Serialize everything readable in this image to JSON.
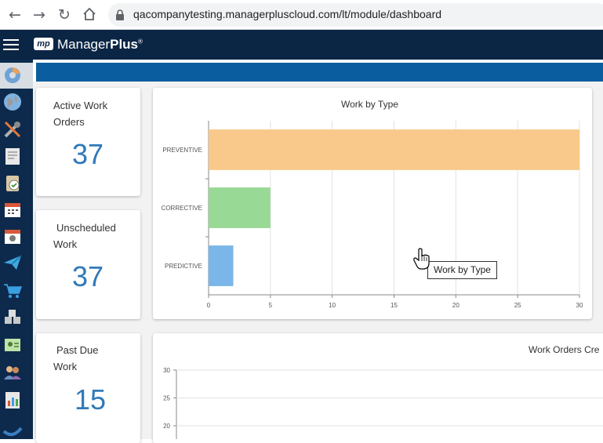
{
  "browser": {
    "url": "qacompanytesting.managerpluscloud.com/lt/module/dashboard"
  },
  "app": {
    "logo_mark": "mp",
    "logo_name": "Manager",
    "logo_name_bold": "Plus",
    "logo_reg": "®"
  },
  "sidebar": {
    "items": [
      {
        "icon": "dashboard-icon"
      },
      {
        "icon": "globe-icon"
      },
      {
        "icon": "tools-icon"
      },
      {
        "icon": "document-icon"
      },
      {
        "icon": "clipboard-check-icon"
      },
      {
        "icon": "calendar-icon"
      },
      {
        "icon": "calendar-gear-icon"
      },
      {
        "icon": "paper-plane-icon"
      },
      {
        "icon": "cart-icon"
      },
      {
        "icon": "boxes-icon"
      },
      {
        "icon": "id-card-icon"
      },
      {
        "icon": "people-icon"
      },
      {
        "icon": "report-icon"
      },
      {
        "icon": "swoosh-icon"
      }
    ]
  },
  "stats": [
    {
      "title": "Active Work Orders",
      "value": "37"
    },
    {
      "title": "Unscheduled Work",
      "value": "37"
    },
    {
      "title": "Past Due Work",
      "value": "15"
    }
  ],
  "work_by_type": {
    "title": "Work by Type",
    "tooltip": "Work by Type"
  },
  "work_orders_created": {
    "title": "Work Orders Cre"
  },
  "chart_data": [
    {
      "type": "bar",
      "orientation": "horizontal",
      "title": "Work by Type",
      "categories": [
        "PREVENTIVE",
        "CORRECTIVE",
        "PREDICTIVE"
      ],
      "values": [
        30,
        5,
        2
      ],
      "colors": [
        "#f8c98a",
        "#98d995",
        "#7ab6e8"
      ],
      "xlim": [
        0,
        30
      ],
      "xticks": [
        0,
        5,
        10,
        15,
        20,
        25,
        30
      ],
      "grid": true
    },
    {
      "type": "line",
      "title": "Work Orders Cre",
      "ylim": [
        20,
        30
      ],
      "yticks": [
        30,
        25,
        20
      ],
      "grid": true,
      "series": []
    }
  ],
  "colors": {
    "header": "#0b2545",
    "sidebar": "#0d2a4c",
    "strip": "#0a5ea0",
    "stat_value": "#2f7ab9"
  }
}
